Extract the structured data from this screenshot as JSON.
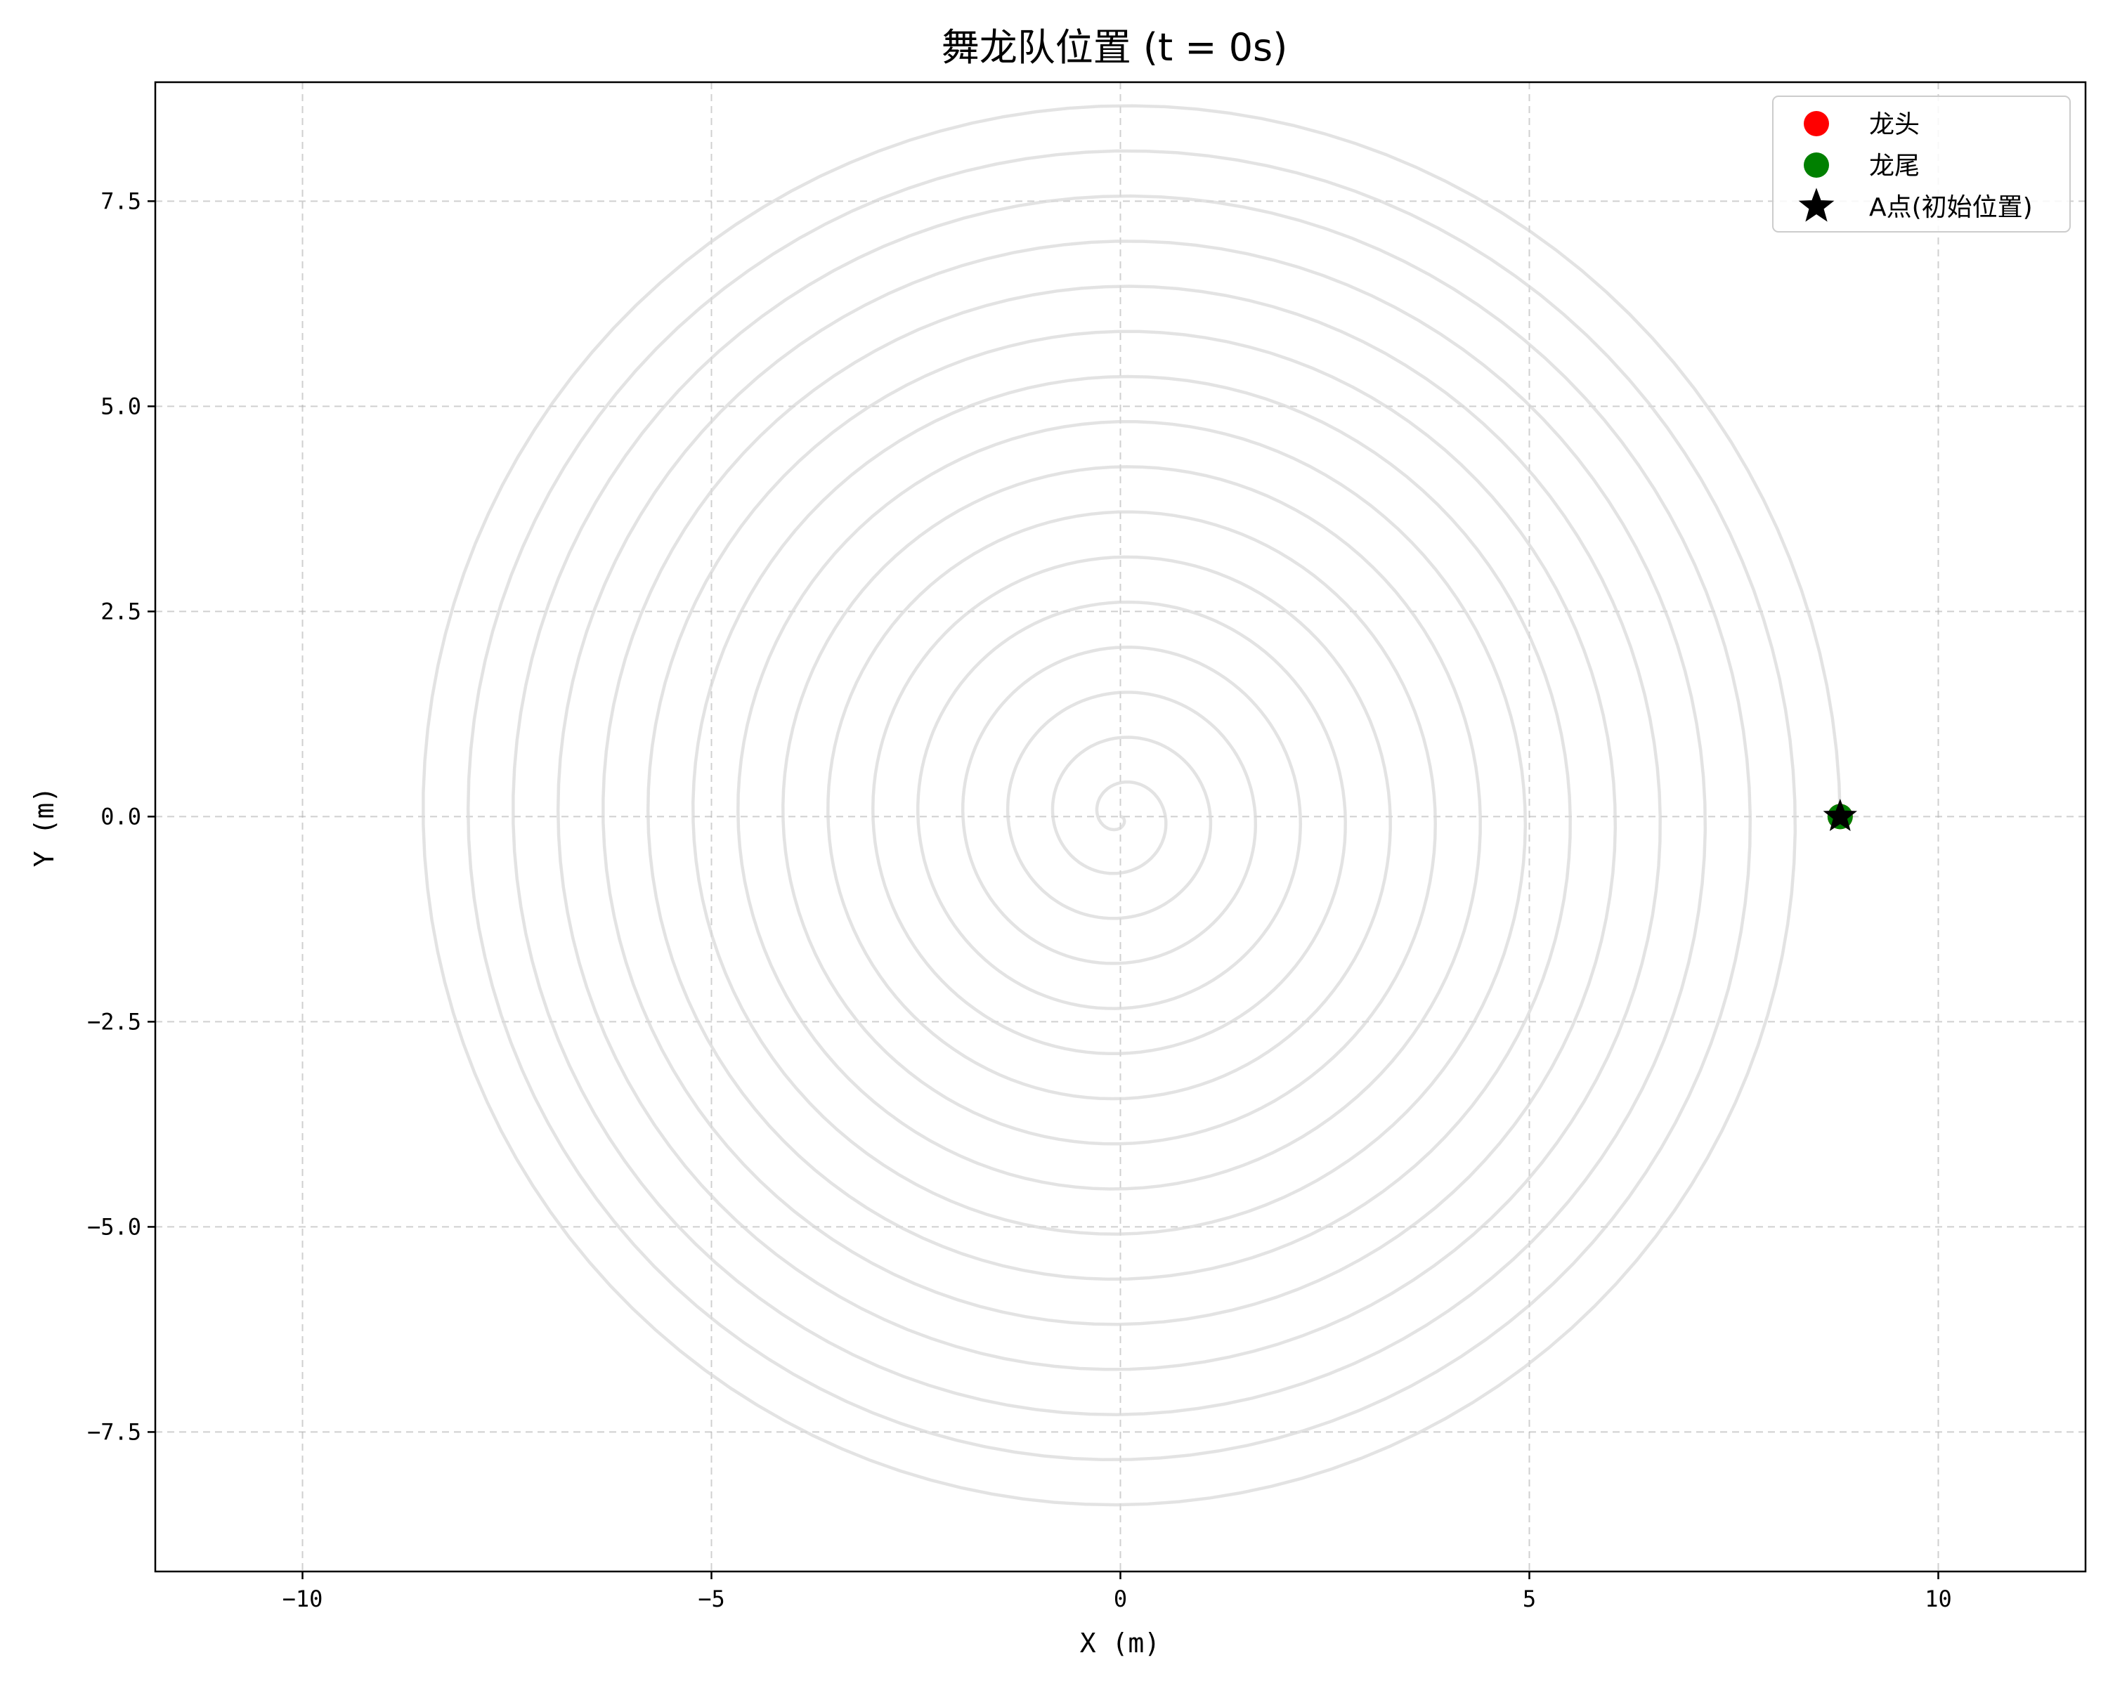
{
  "chart_data": {
    "type": "scatter",
    "title": "舞龙队位置 (t = 0s)",
    "xlabel": "X (m)",
    "ylabel": "Y (m)",
    "xlim": [
      -11.8,
      11.8
    ],
    "ylim": [
      -9.2,
      8.95
    ],
    "xticks": [
      -10,
      -5,
      0,
      5,
      10
    ],
    "xtick_labels": [
      "−10",
      "−5",
      "0",
      "5",
      "10"
    ],
    "yticks": [
      -7.5,
      -5.0,
      -2.5,
      0.0,
      2.5,
      5.0,
      7.5
    ],
    "ytick_labels": [
      "−7.5",
      "−5.0",
      "−2.5",
      "0.0",
      "2.5",
      "5.0",
      "7.5"
    ],
    "grid": true,
    "legend_position": "top-right",
    "spiral": {
      "description_free": true,
      "pitch": 0.55,
      "turns": 16,
      "color": "#d9d9d9"
    },
    "series": [
      {
        "name": "龙头",
        "marker": "circle",
        "color": "#ff0000",
        "points": [
          [
            8.8,
            0.0
          ]
        ]
      },
      {
        "name": "龙尾",
        "marker": "circle",
        "color": "#008000",
        "points": [
          [
            8.8,
            0.0
          ]
        ]
      },
      {
        "name": "A点(初始位置)",
        "marker": "star",
        "color": "#000000",
        "points": [
          [
            8.8,
            0.0
          ]
        ]
      }
    ]
  }
}
